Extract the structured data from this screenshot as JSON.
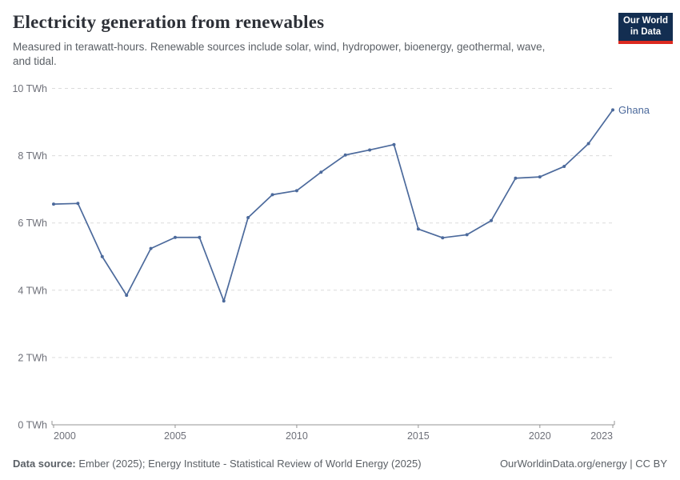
{
  "header": {
    "title": "Electricity generation from renewables",
    "subtitle": "Measured in terawatt-hours. Renewable sources include solar, wind, hydropower, bioenergy, geothermal, wave, and tidal.",
    "logo": {
      "line1": "Our World",
      "line2": "in Data",
      "bg_color": "#132e51",
      "bar_color": "#dc2a20",
      "text_color": "#ffffff"
    }
  },
  "chart_data": {
    "type": "line",
    "title": "Electricity generation from renewables",
    "unit": "TWh",
    "xlabel": "",
    "ylabel": "TWh",
    "xlim": [
      2000,
      2023
    ],
    "ylim": [
      0,
      10
    ],
    "grid": "horizontal-dashed",
    "legend_position": "end-of-line-label",
    "x_ticks": [
      2000,
      2005,
      2010,
      2015,
      2020,
      2023
    ],
    "x_tick_labels": [
      "2000",
      "2005",
      "2010",
      "2015",
      "2020",
      "2023"
    ],
    "y_ticks": [
      0,
      2,
      4,
      6,
      8,
      10
    ],
    "y_tick_labels": [
      "0 TWh",
      "2 TWh",
      "4 TWh",
      "6 TWh",
      "8 TWh",
      "10 TWh"
    ],
    "series": [
      {
        "name": "Ghana",
        "color": "#4C6A9C",
        "x": [
          2000,
          2001,
          2002,
          2003,
          2004,
          2005,
          2006,
          2007,
          2008,
          2009,
          2010,
          2011,
          2012,
          2013,
          2014,
          2015,
          2016,
          2017,
          2018,
          2019,
          2020,
          2021,
          2022,
          2023
        ],
        "values": [
          6.56,
          6.58,
          5.0,
          3.85,
          5.24,
          5.57,
          5.57,
          3.68,
          6.16,
          6.84,
          6.96,
          7.51,
          8.02,
          8.17,
          8.33,
          5.82,
          5.56,
          5.65,
          6.07,
          7.33,
          7.37,
          7.68,
          8.36,
          9.36
        ]
      }
    ],
    "colors": {
      "grid": "#dcdcdc",
      "axis": "#949494",
      "tick_label": "#6e7079"
    }
  },
  "footer": {
    "source_label": "Data source:",
    "source_text": "Ember (2025); Energy Institute - Statistical Review of World Energy (2025)",
    "attribution": "OurWorldinData.org/energy | CC BY"
  }
}
